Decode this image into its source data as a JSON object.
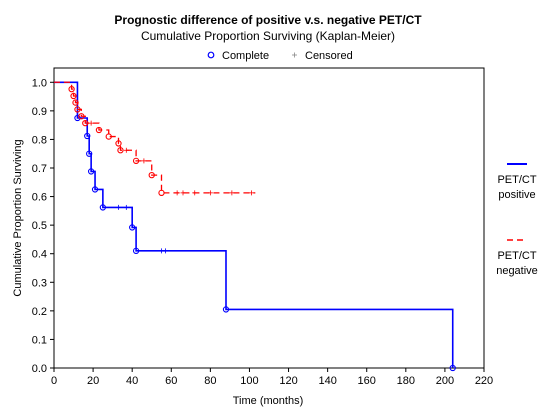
{
  "chart_data": {
    "type": "line",
    "title": "Prognostic difference of positive v.s. negative PET/CT",
    "subtitle": "Cumulative Proportion Surviving (Kaplan-Meier)",
    "xlabel": "Time (months)",
    "ylabel": "Cumulative Proportion Surviving",
    "xlim": [
      0,
      220
    ],
    "ylim": [
      0,
      1.05
    ],
    "xticks": [
      0,
      20,
      40,
      60,
      80,
      100,
      120,
      140,
      160,
      180,
      200,
      220
    ],
    "yticks": [
      0.0,
      0.1,
      0.2,
      0.3,
      0.4,
      0.5,
      0.6,
      0.7,
      0.8,
      0.9,
      1.0
    ],
    "grid": false,
    "marker_legend": {
      "complete": "Complete",
      "censored": "Censored"
    },
    "series": [
      {
        "name": "PET/CT positive",
        "name_lines": [
          "PET/CT",
          "positive"
        ],
        "color": "#0000ff",
        "dash": "solid",
        "end_time": 204,
        "steps": [
          [
            0,
            1.0
          ],
          [
            12,
            0.875
          ],
          [
            17,
            0.812
          ],
          [
            18,
            0.75
          ],
          [
            19,
            0.688
          ],
          [
            21,
            0.625
          ],
          [
            25,
            0.562
          ],
          [
            40,
            0.492
          ],
          [
            42,
            0.41
          ],
          [
            88,
            0.205
          ],
          [
            204,
            0.0
          ]
        ],
        "complete_times": [
          12,
          17,
          18,
          19,
          21,
          25,
          40,
          42,
          88,
          204
        ],
        "censored": [
          [
            33,
            0.562
          ],
          [
            37,
            0.562
          ],
          [
            55,
            0.41
          ],
          [
            57,
            0.41
          ]
        ]
      },
      {
        "name": "PET/CT negative",
        "name_lines": [
          "PET/CT",
          "negative"
        ],
        "color": "#ff0000",
        "dash": "6,4",
        "end_time": 103,
        "steps": [
          [
            0,
            1.0
          ],
          [
            9,
            0.976
          ],
          [
            10,
            0.952
          ],
          [
            11,
            0.929
          ],
          [
            12,
            0.905
          ],
          [
            14,
            0.881
          ],
          [
            16,
            0.857
          ],
          [
            23,
            0.833
          ],
          [
            28,
            0.81
          ],
          [
            33,
            0.786
          ],
          [
            34,
            0.762
          ],
          [
            42,
            0.725
          ],
          [
            50,
            0.675
          ],
          [
            55,
            0.613
          ]
        ],
        "complete_times": [
          9,
          10,
          11,
          12,
          14,
          16,
          23,
          28,
          33,
          34,
          42,
          50,
          55
        ],
        "censored": [
          [
            19,
            0.857
          ],
          [
            37,
            0.762
          ],
          [
            46,
            0.725
          ],
          [
            63,
            0.613
          ],
          [
            66,
            0.613
          ],
          [
            72,
            0.613
          ],
          [
            80,
            0.613
          ],
          [
            91,
            0.613
          ],
          [
            101,
            0.613
          ]
        ]
      }
    ]
  }
}
